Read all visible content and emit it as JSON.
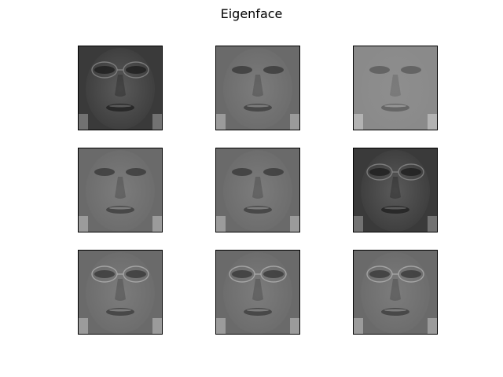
{
  "figure": {
    "title": "Eigenface"
  },
  "panels": [
    {
      "tone": "dark",
      "glasses": true
    },
    {
      "tone": "mid",
      "glasses": false
    },
    {
      "tone": "light",
      "glasses": false
    },
    {
      "tone": "mid",
      "glasses": false
    },
    {
      "tone": "mid",
      "glasses": false
    },
    {
      "tone": "dark",
      "glasses": true
    },
    {
      "tone": "mid",
      "glasses": true
    },
    {
      "tone": "mid",
      "glasses": true
    },
    {
      "tone": "mid",
      "glasses": true
    }
  ]
}
